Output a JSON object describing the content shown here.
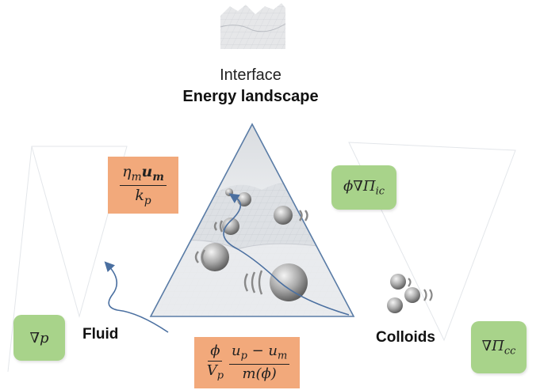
{
  "labels": {
    "interface": "Interface",
    "energy_landscape": "Energy landscape",
    "fluid": "Fluid",
    "colloids": "Colloids"
  },
  "equations": {
    "drag_num": "η",
    "drag_num_sub": "m",
    "drag_num_u": "u",
    "drag_num_u_sub": "m",
    "drag_den": "k",
    "drag_den_sub": "p",
    "interface_colloid": "ϕ∇Π",
    "interface_colloid_sub": "ic",
    "pressure_gradient": "∇p",
    "colloid_colloid": "∇Π",
    "colloid_colloid_sub": "cc",
    "coupling_frac1_num": "ϕ",
    "coupling_frac1_den": "V",
    "coupling_frac1_den_sub": "p",
    "coupling_frac2_num_a": "u",
    "coupling_frac2_num_a_sub": "p",
    "coupling_frac2_num_op": " − ",
    "coupling_frac2_num_b": "u",
    "coupling_frac2_num_b_sub": "m",
    "coupling_frac2_den": "m(ϕ)"
  },
  "colors": {
    "green_box": "#a8d38a",
    "orange_box": "#f2a97b",
    "triangle_stroke": "#5a7ca6",
    "arrow": "#4a6fa0"
  }
}
